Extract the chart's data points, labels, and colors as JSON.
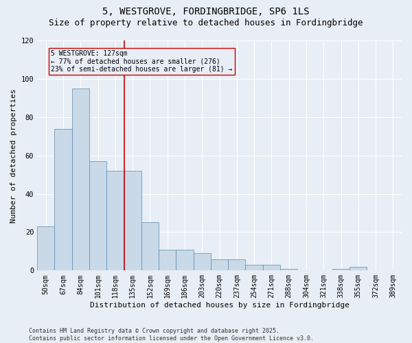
{
  "title": "5, WESTGROVE, FORDINGBRIDGE, SP6 1LS",
  "subtitle": "Size of property relative to detached houses in Fordingbridge",
  "xlabel": "Distribution of detached houses by size in Fordingbridge",
  "ylabel": "Number of detached properties",
  "bar_color": "#c9d9e8",
  "bar_edge_color": "#5a8ab0",
  "background_color": "#e8eef5",
  "categories": [
    "50sqm",
    "67sqm",
    "84sqm",
    "101sqm",
    "118sqm",
    "135sqm",
    "152sqm",
    "169sqm",
    "186sqm",
    "203sqm",
    "220sqm",
    "237sqm",
    "254sqm",
    "271sqm",
    "288sqm",
    "304sqm",
    "321sqm",
    "338sqm",
    "355sqm",
    "372sqm",
    "389sqm"
  ],
  "values": [
    23,
    74,
    95,
    57,
    52,
    52,
    25,
    11,
    11,
    9,
    6,
    6,
    3,
    3,
    1,
    0,
    0,
    1,
    2,
    0,
    0
  ],
  "vline_color": "#cc0000",
  "vline_pos": 4.5,
  "annotation_text": "5 WESTGROVE: 127sqm\n← 77% of detached houses are smaller (276)\n23% of semi-detached houses are larger (81) →",
  "ylim": [
    0,
    120
  ],
  "yticks": [
    0,
    20,
    40,
    60,
    80,
    100,
    120
  ],
  "footer_text": "Contains HM Land Registry data © Crown copyright and database right 2025.\nContains public sector information licensed under the Open Government Licence v3.0.",
  "title_fontsize": 10,
  "subtitle_fontsize": 9,
  "axis_fontsize": 8,
  "tick_fontsize": 7
}
